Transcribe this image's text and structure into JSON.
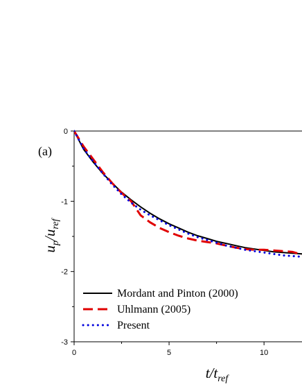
{
  "chart_data": {
    "type": "line",
    "panel_label": "(a)",
    "xlabel": {
      "main": "t/t",
      "sub": "ref"
    },
    "ylabel": {
      "main": "u",
      "sub_p": "p",
      "slash": "/u",
      "sub_ref": "ref"
    },
    "xlim": [
      0,
      12
    ],
    "ylim": [
      -3,
      0
    ],
    "x_ticks": [
      0,
      5,
      10
    ],
    "y_ticks": [
      0,
      -1,
      -2,
      -3
    ],
    "grid": false,
    "legend_position": "bottom-left",
    "series": [
      {
        "name": "Mordant and Pinton (2000)",
        "color": "#000000",
        "style": "solid",
        "x": [
          0,
          0.5,
          1,
          1.5,
          2,
          2.5,
          3,
          3.5,
          4,
          4.5,
          5,
          5.5,
          6,
          6.5,
          7,
          7.5,
          8,
          8.5,
          9,
          9.5,
          10,
          10.5,
          11,
          11.5,
          12
        ],
        "y": [
          0,
          -0.26,
          -0.44,
          -0.6,
          -0.74,
          -0.87,
          -0.98,
          -1.08,
          -1.17,
          -1.25,
          -1.32,
          -1.38,
          -1.44,
          -1.49,
          -1.53,
          -1.57,
          -1.6,
          -1.63,
          -1.66,
          -1.68,
          -1.7,
          -1.72,
          -1.73,
          -1.74,
          -1.75
        ]
      },
      {
        "name": "Uhlmann (2005)",
        "color": "#e00000",
        "style": "dashed",
        "x": [
          0,
          0.5,
          1,
          1.5,
          2,
          2.5,
          3,
          3.5,
          4,
          4.5,
          5,
          5.5,
          6,
          6.5,
          7,
          7.5,
          8,
          8.5,
          9,
          9.5,
          10,
          10.5,
          11,
          11.5,
          12
        ],
        "y": [
          0,
          -0.22,
          -0.4,
          -0.58,
          -0.74,
          -0.88,
          -1.0,
          -1.2,
          -1.3,
          -1.38,
          -1.44,
          -1.49,
          -1.53,
          -1.56,
          -1.58,
          -1.6,
          -1.63,
          -1.66,
          -1.68,
          -1.69,
          -1.69,
          -1.7,
          -1.71,
          -1.72,
          -1.76
        ]
      },
      {
        "name": "Present",
        "color": "#0000dd",
        "style": "dotted",
        "x": [
          0,
          0.5,
          1,
          1.5,
          2,
          2.5,
          3,
          3.5,
          4,
          4.5,
          5,
          5.5,
          6,
          6.5,
          7,
          7.5,
          8,
          8.5,
          9,
          9.5,
          10,
          10.5,
          11,
          11.5,
          12
        ],
        "y": [
          0,
          -0.25,
          -0.43,
          -0.6,
          -0.76,
          -0.9,
          -1.02,
          -1.12,
          -1.2,
          -1.27,
          -1.34,
          -1.4,
          -1.46,
          -1.51,
          -1.55,
          -1.59,
          -1.63,
          -1.66,
          -1.69,
          -1.71,
          -1.73,
          -1.75,
          -1.77,
          -1.78,
          -1.79
        ]
      }
    ]
  }
}
